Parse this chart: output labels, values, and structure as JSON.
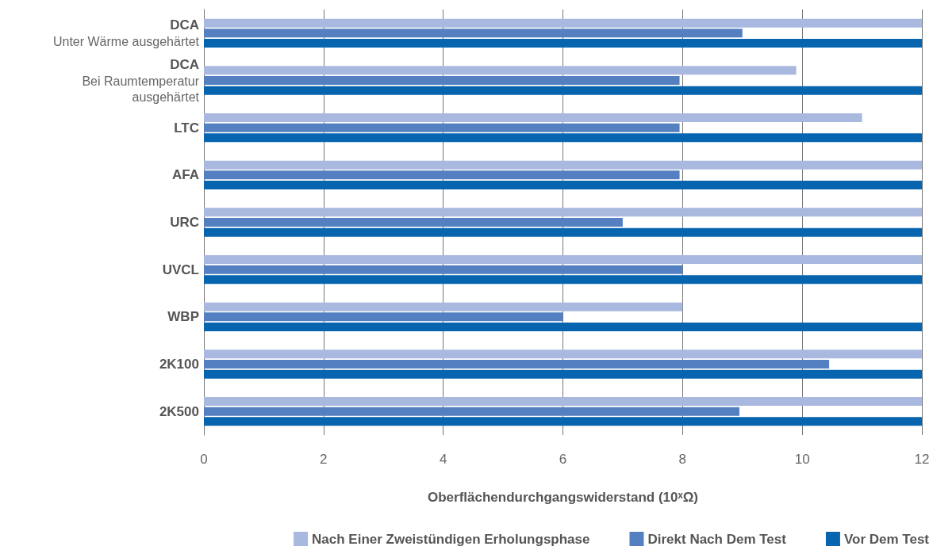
{
  "chart_data": {
    "type": "bar",
    "orientation": "horizontal",
    "xlabel": "Oberflächendurchgangswiderstand (10ˣΩ)",
    "categories": [
      "DCA\nUnter Wärme ausgehärtet",
      "DCA\nBei Raumtemperatur\nausgehärtet",
      "LTC",
      "AFA",
      "URC",
      "UVCL",
      "WBP",
      "2K100",
      "2K500"
    ],
    "series": [
      {
        "name": "Nach Einer Zweistündigen Erholungsphase",
        "color": "#a9b8df",
        "values": [
          12,
          9.9,
          11,
          12,
          12,
          12,
          8,
          12,
          12
        ]
      },
      {
        "name": "Direkt Nach Dem Test",
        "color": "#5480c1",
        "values": [
          9,
          7.95,
          7.95,
          7.95,
          7,
          8,
          6,
          10.45,
          8.95
        ]
      },
      {
        "name": "Vor Dem Test",
        "color": "#0765b0",
        "values": [
          12,
          12,
          12,
          12,
          12,
          12,
          12,
          12,
          12
        ]
      }
    ],
    "xlim": [
      0,
      12
    ],
    "xticks": [
      0,
      2,
      4,
      6,
      8,
      10,
      12
    ],
    "grid": "x",
    "legend": "bottom"
  }
}
